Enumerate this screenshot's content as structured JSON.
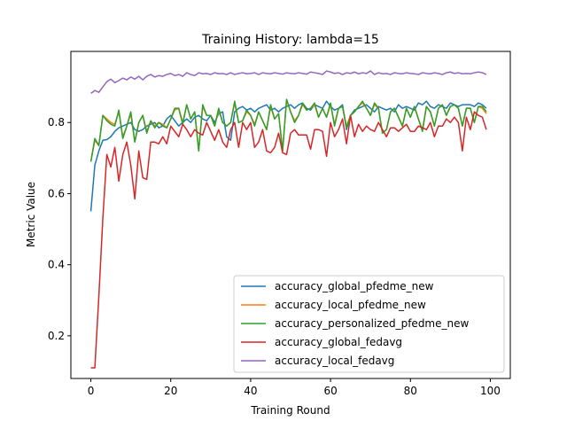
{
  "chart_data": {
    "type": "line",
    "title": "Training History: lambda=15",
    "xlabel": "Training Round",
    "ylabel": "Metric Value",
    "xlim": [
      -5,
      105
    ],
    "ylim": [
      0.08,
      1.0
    ],
    "xticks": [
      0,
      20,
      40,
      60,
      80,
      100
    ],
    "yticks": [
      0.2,
      0.4,
      0.6,
      0.8
    ],
    "grid": false,
    "legend_position": "bottom-right",
    "x": [
      0,
      1,
      2,
      3,
      4,
      5,
      6,
      7,
      8,
      9,
      10,
      11,
      12,
      13,
      14,
      15,
      16,
      17,
      18,
      19,
      20,
      21,
      22,
      23,
      24,
      25,
      26,
      27,
      28,
      29,
      30,
      31,
      32,
      33,
      34,
      35,
      36,
      37,
      38,
      39,
      40,
      41,
      42,
      43,
      44,
      45,
      46,
      47,
      48,
      49,
      50,
      51,
      52,
      53,
      54,
      55,
      56,
      57,
      58,
      59,
      60,
      61,
      62,
      63,
      64,
      65,
      66,
      67,
      68,
      69,
      70,
      71,
      72,
      73,
      74,
      75,
      76,
      77,
      78,
      79,
      80,
      81,
      82,
      83,
      84,
      85,
      86,
      87,
      88,
      89,
      90,
      91,
      92,
      93,
      94,
      95,
      96,
      97,
      98,
      99
    ],
    "series": [
      {
        "name": "accuracy_global_pfedme_new",
        "color": "#1f77b4",
        "values": [
          0.55,
          0.68,
          0.72,
          0.75,
          0.752,
          0.76,
          0.775,
          0.785,
          0.79,
          0.795,
          0.8,
          0.78,
          0.775,
          0.78,
          0.79,
          0.795,
          0.8,
          0.785,
          0.79,
          0.81,
          0.82,
          0.805,
          0.79,
          0.8,
          0.81,
          0.8,
          0.815,
          0.82,
          0.81,
          0.805,
          0.82,
          0.8,
          0.825,
          0.83,
          0.76,
          0.75,
          0.83,
          0.84,
          0.845,
          0.835,
          0.84,
          0.83,
          0.84,
          0.845,
          0.85,
          0.835,
          0.84,
          0.83,
          0.84,
          0.845,
          0.85,
          0.84,
          0.85,
          0.855,
          0.84,
          0.835,
          0.85,
          0.845,
          0.84,
          0.86,
          0.845,
          0.835,
          0.84,
          0.85,
          0.78,
          0.82,
          0.835,
          0.84,
          0.845,
          0.85,
          0.84,
          0.83,
          0.845,
          0.84,
          0.835,
          0.84,
          0.83,
          0.85,
          0.84,
          0.845,
          0.84,
          0.835,
          0.855,
          0.85,
          0.86,
          0.845,
          0.84,
          0.85,
          0.845,
          0.84,
          0.855,
          0.85,
          0.845,
          0.85,
          0.85,
          0.85,
          0.845,
          0.855,
          0.85,
          0.84
        ]
      },
      {
        "name": "accuracy_local_pfedme_new",
        "color": "#ff7f0e",
        "values": [
          0.69,
          0.75,
          0.735,
          0.82,
          0.81,
          0.8,
          0.795,
          0.83,
          0.76,
          0.79,
          0.825,
          0.745,
          0.8,
          0.82,
          0.775,
          0.805,
          0.79,
          0.8,
          0.795,
          0.785,
          0.81,
          0.835,
          0.84,
          0.8,
          0.85,
          0.81,
          0.83,
          0.72,
          0.845,
          0.82,
          0.82,
          0.79,
          0.835,
          0.8,
          0.79,
          0.8,
          0.855,
          0.8,
          0.805,
          0.83,
          0.82,
          0.795,
          0.83,
          0.805,
          0.78,
          0.845,
          0.81,
          0.825,
          0.72,
          0.865,
          0.83,
          0.805,
          0.82,
          0.85,
          0.835,
          0.84,
          0.85,
          0.815,
          0.84,
          0.815,
          0.85,
          0.795,
          0.84,
          0.845,
          0.79,
          0.82,
          0.83,
          0.845,
          0.855,
          0.84,
          0.82,
          0.85,
          0.84,
          0.77,
          0.78,
          0.83,
          0.84,
          0.815,
          0.79,
          0.84,
          0.815,
          0.845,
          0.81,
          0.78,
          0.845,
          0.83,
          0.79,
          0.84,
          0.85,
          0.82,
          0.845,
          0.85,
          0.84,
          0.79,
          0.84,
          0.84,
          0.8,
          0.845,
          0.84,
          0.825
        ]
      },
      {
        "name": "accuracy_personalized_pfedme_new",
        "color": "#2ca02c",
        "values": [
          0.69,
          0.755,
          0.735,
          0.82,
          0.805,
          0.795,
          0.79,
          0.835,
          0.755,
          0.79,
          0.83,
          0.745,
          0.8,
          0.82,
          0.77,
          0.805,
          0.785,
          0.8,
          0.79,
          0.785,
          0.81,
          0.84,
          0.84,
          0.795,
          0.85,
          0.81,
          0.83,
          0.72,
          0.85,
          0.82,
          0.82,
          0.79,
          0.84,
          0.8,
          0.79,
          0.8,
          0.86,
          0.8,
          0.805,
          0.835,
          0.82,
          0.79,
          0.83,
          0.805,
          0.78,
          0.85,
          0.81,
          0.825,
          0.72,
          0.865,
          0.83,
          0.8,
          0.82,
          0.855,
          0.835,
          0.84,
          0.855,
          0.815,
          0.84,
          0.815,
          0.855,
          0.79,
          0.84,
          0.845,
          0.785,
          0.82,
          0.83,
          0.845,
          0.86,
          0.84,
          0.82,
          0.855,
          0.84,
          0.77,
          0.78,
          0.83,
          0.84,
          0.815,
          0.79,
          0.84,
          0.815,
          0.845,
          0.81,
          0.775,
          0.845,
          0.83,
          0.79,
          0.84,
          0.85,
          0.82,
          0.845,
          0.85,
          0.84,
          0.79,
          0.84,
          0.84,
          0.8,
          0.845,
          0.845,
          0.83
        ]
      },
      {
        "name": "accuracy_global_fedavg",
        "color": "#d62728",
        "values": [
          0.11,
          0.11,
          0.31,
          0.53,
          0.71,
          0.675,
          0.73,
          0.635,
          0.71,
          0.745,
          0.68,
          0.585,
          0.72,
          0.645,
          0.64,
          0.745,
          0.745,
          0.74,
          0.76,
          0.74,
          0.79,
          0.775,
          0.76,
          0.795,
          0.78,
          0.76,
          0.78,
          0.77,
          0.765,
          0.8,
          0.775,
          0.75,
          0.78,
          0.745,
          0.73,
          0.78,
          0.8,
          0.73,
          0.8,
          0.78,
          0.8,
          0.73,
          0.745,
          0.78,
          0.72,
          0.715,
          0.73,
          0.77,
          0.715,
          0.71,
          0.77,
          0.78,
          0.765,
          0.765,
          0.765,
          0.725,
          0.78,
          0.78,
          0.775,
          0.705,
          0.8,
          0.76,
          0.78,
          0.81,
          0.74,
          0.82,
          0.76,
          0.795,
          0.775,
          0.79,
          0.78,
          0.775,
          0.8,
          0.78,
          0.76,
          0.785,
          0.785,
          0.775,
          0.785,
          0.795,
          0.775,
          0.775,
          0.79,
          0.785,
          0.78,
          0.8,
          0.76,
          0.79,
          0.79,
          0.81,
          0.8,
          0.815,
          0.8,
          0.72,
          0.815,
          0.78,
          0.83,
          0.82,
          0.815,
          0.78
        ]
      },
      {
        "name": "accuracy_local_fedavg",
        "color": "#9467bd",
        "values": [
          0.882,
          0.89,
          0.885,
          0.9,
          0.915,
          0.922,
          0.912,
          0.918,
          0.925,
          0.92,
          0.928,
          0.922,
          0.93,
          0.92,
          0.93,
          0.935,
          0.928,
          0.932,
          0.93,
          0.935,
          0.938,
          0.932,
          0.935,
          0.93,
          0.94,
          0.935,
          0.932,
          0.94,
          0.937,
          0.938,
          0.935,
          0.94,
          0.937,
          0.938,
          0.935,
          0.94,
          0.935,
          0.938,
          0.94,
          0.937,
          0.938,
          0.94,
          0.935,
          0.94,
          0.938,
          0.937,
          0.94,
          0.938,
          0.936,
          0.94,
          0.938,
          0.937,
          0.94,
          0.938,
          0.936,
          0.942,
          0.94,
          0.938,
          0.935,
          0.945,
          0.942,
          0.938,
          0.94,
          0.935,
          0.94,
          0.938,
          0.942,
          0.937,
          0.94,
          0.938,
          0.945,
          0.935,
          0.94,
          0.937,
          0.938,
          0.935,
          0.94,
          0.938,
          0.937,
          0.94,
          0.938,
          0.937,
          0.935,
          0.94,
          0.938,
          0.937,
          0.94,
          0.938,
          0.935,
          0.94,
          0.942,
          0.938,
          0.94,
          0.937,
          0.938,
          0.937,
          0.94,
          0.942,
          0.94,
          0.935
        ]
      }
    ]
  }
}
